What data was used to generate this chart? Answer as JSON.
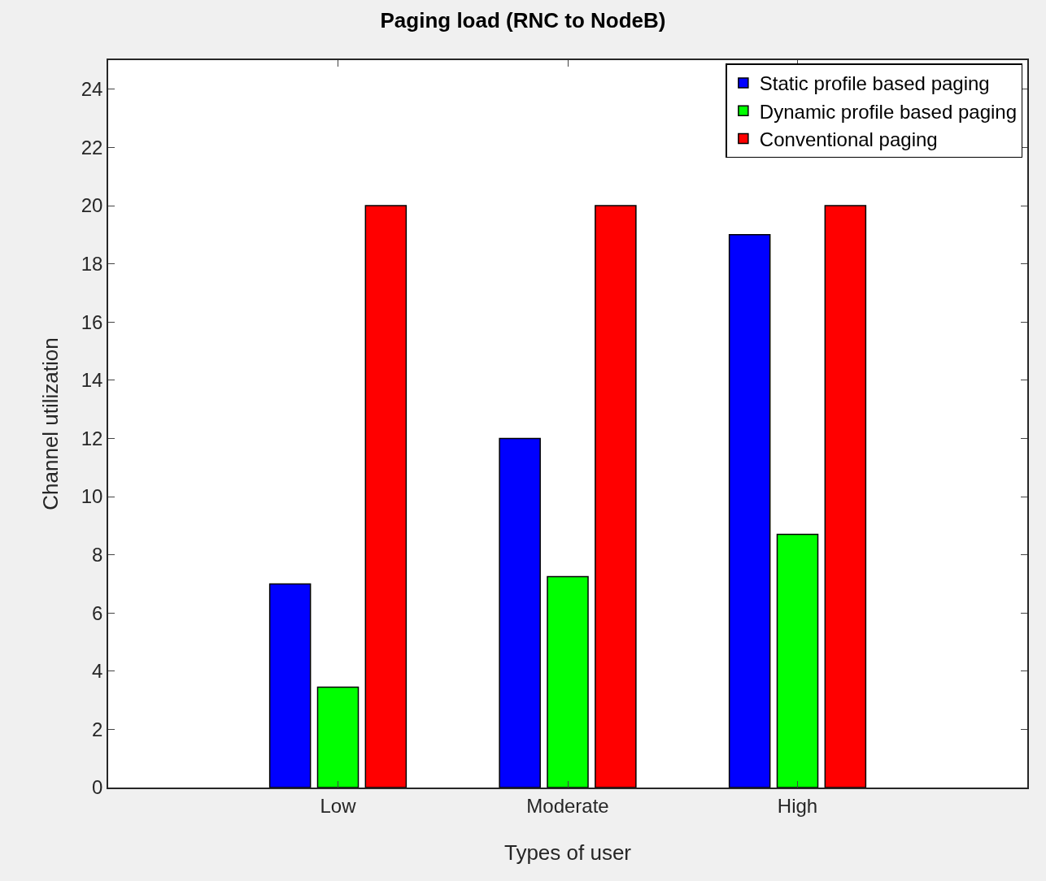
{
  "chart_data": {
    "type": "bar",
    "title": "Paging load (RNC to NodeB)",
    "xlabel": "Types of user",
    "ylabel": "Channel utilization",
    "categories": [
      "Low",
      "Moderate",
      "High"
    ],
    "series": [
      {
        "name": "Static profile based paging",
        "color": "#0000ff",
        "values": [
          7,
          12,
          19
        ]
      },
      {
        "name": "Dynamic profile based paging",
        "color": "#00ff00",
        "values": [
          3.45,
          7.25,
          8.7
        ]
      },
      {
        "name": "Conventional paging",
        "color": "#ff0000",
        "values": [
          20,
          20,
          20
        ]
      }
    ],
    "ylim": [
      0,
      25
    ],
    "yticks": [
      0,
      2,
      4,
      6,
      8,
      10,
      12,
      14,
      16,
      18,
      20,
      22,
      24
    ],
    "grid": false,
    "legend": "top right"
  }
}
